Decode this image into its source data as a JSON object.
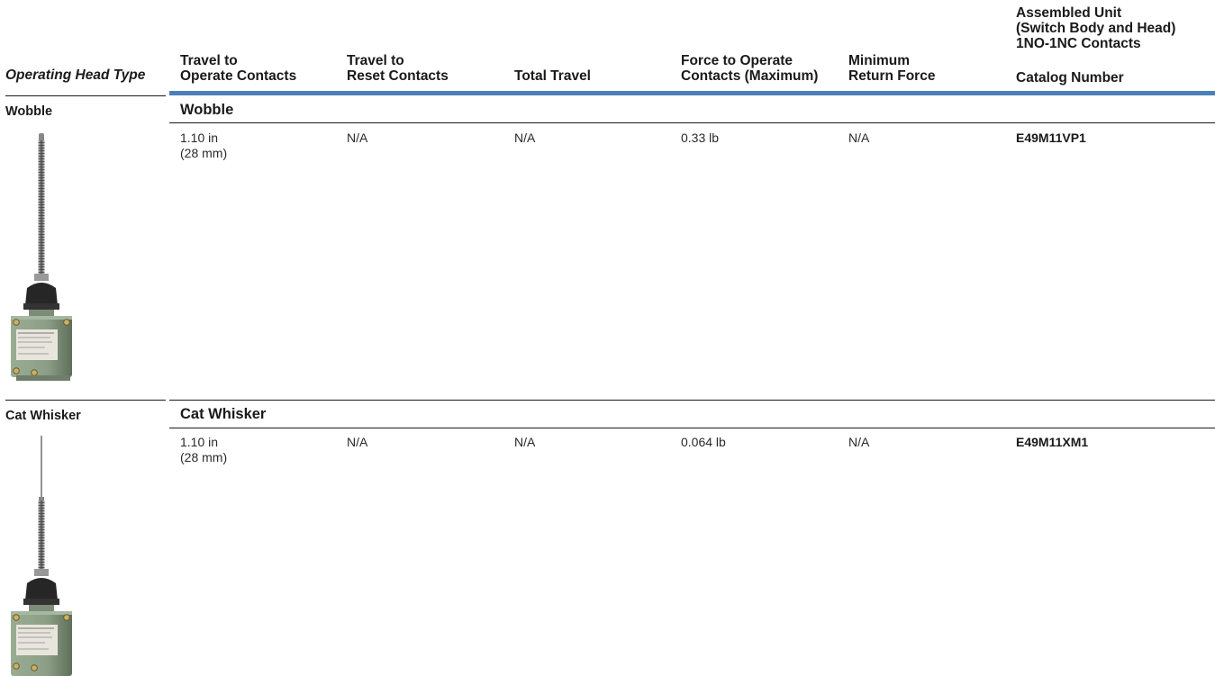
{
  "table": {
    "headers": {
      "operating_head_type": "Operating Head Type",
      "travel_operate": [
        "Travel to",
        "Operate Contacts"
      ],
      "travel_reset": [
        "Travel to",
        "Reset Contacts"
      ],
      "total_travel": "Total Travel",
      "force_operate": [
        "Force to Operate",
        "Contacts (Maximum)"
      ],
      "min_return": [
        "Minimum",
        "Return Force"
      ],
      "assembled": [
        "Assembled Unit",
        "(Switch Body and Head)",
        "1NO-1NC Contacts"
      ],
      "catalog_number": "Catalog Number"
    },
    "rows": [
      {
        "type_label": "Wobble",
        "section_title": "Wobble",
        "travel_operate": [
          "1.10 in",
          "(28 mm)"
        ],
        "travel_reset": "N/A",
        "total_travel": "N/A",
        "force_operate": "0.33 lb",
        "min_return": "N/A",
        "catalog_number": "E49M11VP1"
      },
      {
        "type_label": "Cat Whisker",
        "section_title": "Cat Whisker",
        "travel_operate": [
          "1.10 in",
          "(28 mm)"
        ],
        "travel_reset": "N/A",
        "total_travel": "N/A",
        "force_operate": "0.064 lb",
        "min_return": "N/A",
        "catalog_number": "E49M11XM1"
      }
    ]
  },
  "colors": {
    "rule_blue": "#4a80b8",
    "switch_body": "#8c9e86",
    "switch_cap": "#262626"
  }
}
